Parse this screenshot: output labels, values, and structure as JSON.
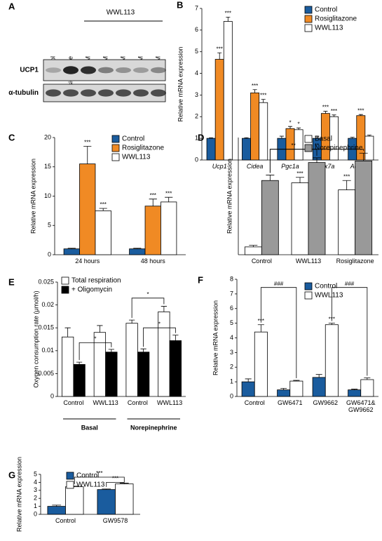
{
  "blot": {
    "label": "A",
    "group_label": "WWL113",
    "lanes": [
      "Control",
      "Rosiglitazone",
      "10 μM",
      "1 μM",
      "100 nM",
      "10 nM",
      "1 nM"
    ],
    "rows": [
      "UCP1",
      "α-tubulin"
    ]
  },
  "chart_data": [
    {
      "type": "bar",
      "label": "B",
      "y_label": "Relative mRNA expression",
      "category_style": "italic",
      "categories": [
        "Ucp1",
        "Cidea",
        "Pgc1a",
        "Cox7a",
        "AdipoQ"
      ],
      "ylim": [
        0,
        7
      ],
      "yticks": [
        0,
        1,
        2,
        3,
        4,
        5,
        6,
        7
      ],
      "legend": "top-right",
      "series": [
        {
          "name": "Control",
          "color": "#1a5c9e",
          "values": [
            1,
            1,
            1,
            1,
            1
          ],
          "errors": [
            0.03,
            0.03,
            0.1,
            0.1,
            0.05
          ],
          "sig": [
            null,
            null,
            null,
            null,
            null
          ]
        },
        {
          "name": "Rosiglitazone",
          "color": "#f08a24",
          "values": [
            4.65,
            3.1,
            1.45,
            2.15,
            2.05
          ],
          "errors": [
            0.3,
            0.15,
            0.1,
            0.1,
            0.05
          ],
          "sig": [
            "***",
            "***",
            "*",
            "***",
            "***"
          ]
        },
        {
          "name": "WWL113",
          "color": "#ffffff",
          "values": [
            6.4,
            2.65,
            1.4,
            2.0,
            1.1
          ],
          "errors": [
            0.2,
            0.15,
            0.08,
            0.08,
            0.05
          ],
          "sig": [
            "***",
            "***",
            "*",
            "***",
            null
          ]
        }
      ]
    },
    {
      "type": "bar",
      "label": "C",
      "y_label": "Relative mRNA expression",
      "categories": [
        "24 hours",
        "48 hours"
      ],
      "ylim": [
        0,
        20
      ],
      "yticks": [
        0,
        5,
        10,
        15,
        20
      ],
      "legend": "top-right",
      "series": [
        {
          "name": "Control",
          "color": "#1a5c9e",
          "values": [
            1,
            1
          ],
          "errors": [
            0.1,
            0.1
          ],
          "sig": [
            null,
            null
          ]
        },
        {
          "name": "Rosiglitazone",
          "color": "#f08a24",
          "values": [
            15.5,
            8.3
          ],
          "errors": [
            3,
            1.2
          ],
          "sig": [
            "***",
            "***"
          ]
        },
        {
          "name": "WWL113",
          "color": "#ffffff",
          "values": [
            7.5,
            9.0
          ],
          "errors": [
            0.4,
            0.8
          ],
          "sig": [
            "***",
            "***"
          ]
        }
      ]
    },
    {
      "type": "bar",
      "label": "D",
      "y_label": "Relative mRNA expression",
      "categories": [
        "Control",
        "WWL113",
        "Rosiglitazone"
      ],
      "ylim": [
        0,
        15
      ],
      "legend": "top-right",
      "series": [
        {
          "name": "Basal",
          "color": "#ffffff",
          "values": [
            1,
            9.2,
            8.3
          ],
          "errors": [
            0.2,
            0.7,
            1.2
          ],
          "sig": [
            null,
            "***",
            "***"
          ]
        },
        {
          "name": "Norepinephrine",
          "color": "#999999",
          "values": [
            9.5,
            11.8,
            12.0
          ],
          "errors": [
            0.7,
            0.6,
            1.0
          ],
          "sig": [
            null,
            null,
            null
          ]
        }
      ],
      "brackets": [
        "**",
        "**"
      ]
    },
    {
      "type": "bar",
      "label": "E",
      "y_label": "Oxygen consumption rate (μmol/h)",
      "categories": [
        "Control",
        "WWL113",
        "Control",
        "WWL113"
      ],
      "groups": [
        "Basal",
        "Norepinephrine"
      ],
      "ylim": [
        0,
        0.025
      ],
      "yticks": [
        0,
        0.005,
        0.01,
        0.015,
        0.02,
        0.025
      ],
      "legend": "top-left",
      "series": [
        {
          "name": "Total respiration",
          "color": "#ffffff",
          "values": [
            0.013,
            0.014,
            0.016,
            0.0185
          ],
          "errors": [
            0.002,
            0.0015,
            0.0007,
            0.0012
          ],
          "sig": [
            null,
            null,
            null,
            null
          ]
        },
        {
          "name": "+ Oligomycin",
          "color": "#000000",
          "values": [
            0.007,
            0.0097,
            0.0097,
            0.0122
          ],
          "errors": [
            0.0005,
            0.0006,
            0.0007,
            0.0012
          ],
          "sig": [
            null,
            null,
            null,
            null
          ]
        }
      ],
      "brackets": [
        "*",
        "*",
        "*"
      ]
    },
    {
      "type": "bar",
      "label": "F",
      "y_label": "Relative mRNA expression",
      "categories": [
        "Control",
        "GW6471",
        "GW9662",
        "GW6471& GW9662"
      ],
      "ylim": [
        0,
        8
      ],
      "yticks": [
        0,
        1,
        2,
        3,
        4,
        5,
        6,
        7,
        8
      ],
      "legend": "right",
      "series": [
        {
          "name": "Control",
          "color": "#1a5c9e",
          "values": [
            1.0,
            0.45,
            1.3,
            0.45
          ],
          "errors": [
            0.2,
            0.1,
            0.2,
            0.05
          ],
          "sig": [
            null,
            null,
            null,
            null
          ]
        },
        {
          "name": "WWL113",
          "color": "#ffffff",
          "values": [
            4.4,
            1.05,
            4.9,
            1.15
          ],
          "errors": [
            0.5,
            0.05,
            0.1,
            0.12
          ],
          "sig": [
            "***",
            null,
            "***",
            null
          ]
        }
      ],
      "brackets": [
        "###",
        "###"
      ]
    },
    {
      "type": "bar",
      "label": "G",
      "y_label": "Relative mRNA expression",
      "categories": [
        "Control",
        "GW9578"
      ],
      "ylim": [
        0,
        5
      ],
      "yticks": [
        0,
        1,
        2,
        3,
        4,
        5
      ],
      "legend": "top-right",
      "series": [
        {
          "name": "Control",
          "color": "#1a5c9e",
          "values": [
            1.0,
            3.1
          ],
          "errors": [
            0.15,
            0.07
          ],
          "sig": [
            null,
            null
          ]
        },
        {
          "name": "WWL113",
          "color": "#ffffff",
          "values": [
            3.45,
            3.8
          ],
          "errors": [
            0.07,
            0.1
          ],
          "sig": [
            null,
            null
          ]
        }
      ],
      "brackets": [
        "***",
        "***"
      ]
    }
  ]
}
